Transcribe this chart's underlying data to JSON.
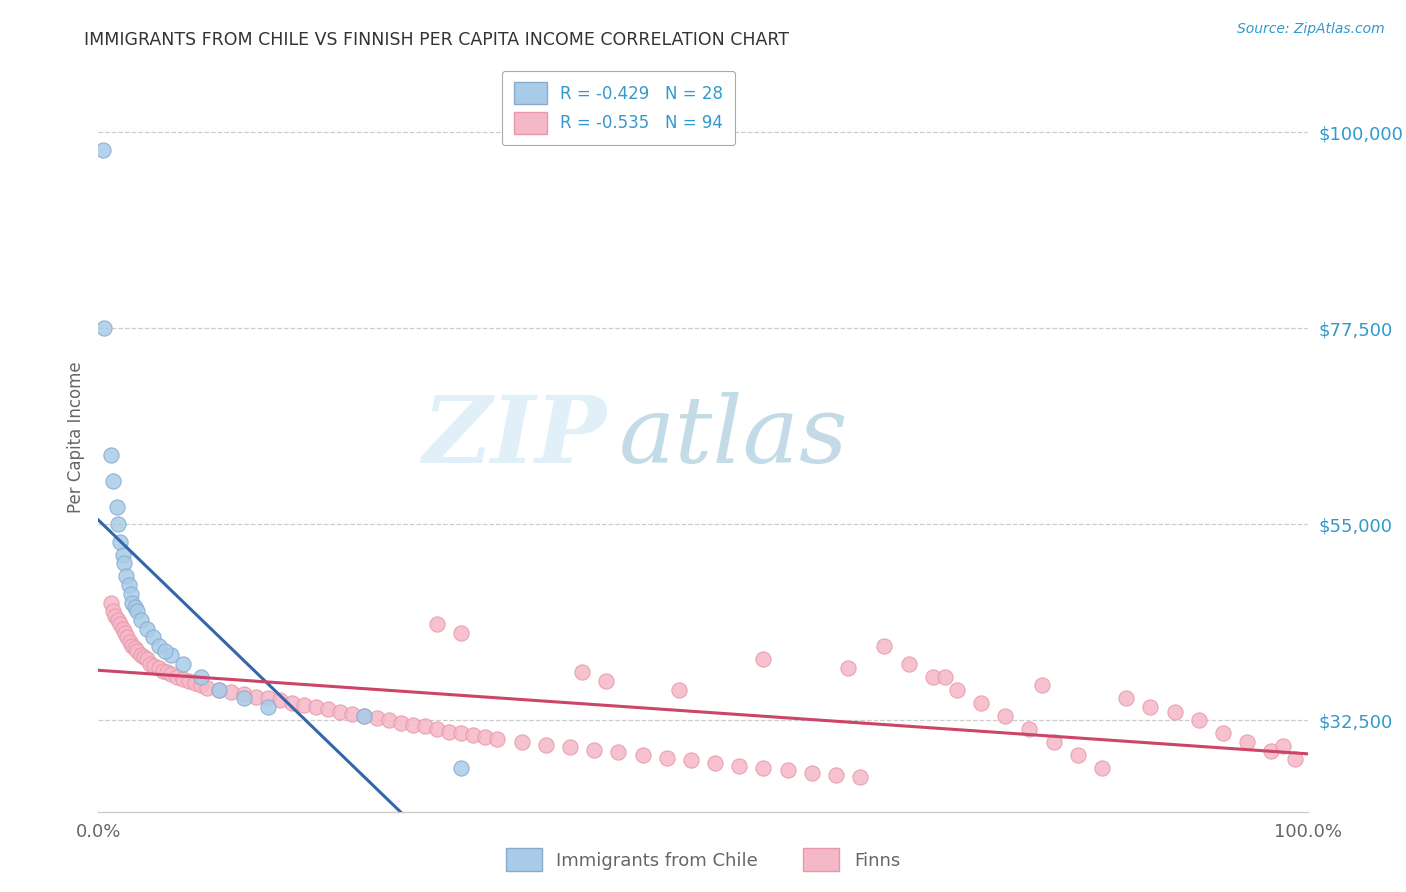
{
  "title": "IMMIGRANTS FROM CHILE VS FINNISH PER CAPITA INCOME CORRELATION CHART",
  "source_text": "Source: ZipAtlas.com",
  "ylabel": "Per Capita Income",
  "watermark_zip": "ZIP",
  "watermark_atlas": "atlas",
  "legend_blue_label": "Immigrants from Chile",
  "legend_pink_label": "Finns",
  "legend_blue_text": "R = -0.429   N = 28",
  "legend_pink_text": "R = -0.535   N = 94",
  "blue_color": "#A8CCE8",
  "pink_color": "#F5B8C8",
  "blue_edge_color": "#88AACE",
  "pink_edge_color": "#E898A8",
  "blue_line_color": "#3366AA",
  "pink_line_color": "#CC4466",
  "ytick_labels": [
    "$32,500",
    "$55,000",
    "$77,500",
    "$100,000"
  ],
  "ytick_values": [
    32500,
    55000,
    77500,
    100000
  ],
  "xmin": 0.0,
  "xmax": 100.0,
  "ymin": 22000,
  "ymax": 108000,
  "background_color": "#ffffff",
  "grid_color": "#cccccc",
  "title_color": "#333333",
  "axis_label_color": "#666666",
  "right_tick_color": "#3399CC",
  "source_color": "#3399CC",
  "blue_scatter_x": [
    0.4,
    0.5,
    1.0,
    1.2,
    1.5,
    1.6,
    1.8,
    2.0,
    2.1,
    2.3,
    2.5,
    2.7,
    2.8,
    3.0,
    3.2,
    3.5,
    4.0,
    4.5,
    5.0,
    6.0,
    7.0,
    8.5,
    10.0,
    12.0,
    14.0,
    5.5,
    22.0,
    30.0
  ],
  "blue_scatter_y": [
    98000,
    77500,
    63000,
    60000,
    57000,
    55000,
    53000,
    51500,
    50500,
    49000,
    48000,
    47000,
    46000,
    45500,
    45000,
    44000,
    43000,
    42000,
    41000,
    40000,
    39000,
    37500,
    36000,
    35000,
    34000,
    40500,
    33000,
    27000
  ],
  "pink_scatter_x": [
    1.0,
    1.2,
    1.4,
    1.6,
    1.8,
    2.0,
    2.2,
    2.4,
    2.6,
    2.8,
    3.0,
    3.2,
    3.5,
    3.8,
    4.0,
    4.3,
    4.6,
    5.0,
    5.3,
    5.7,
    6.0,
    6.5,
    7.0,
    7.5,
    8.0,
    8.5,
    9.0,
    10.0,
    11.0,
    12.0,
    13.0,
    14.0,
    15.0,
    16.0,
    17.0,
    18.0,
    19.0,
    20.0,
    21.0,
    22.0,
    23.0,
    24.0,
    25.0,
    26.0,
    27.0,
    28.0,
    29.0,
    30.0,
    31.0,
    32.0,
    33.0,
    35.0,
    37.0,
    39.0,
    41.0,
    43.0,
    45.0,
    47.0,
    49.0,
    51.0,
    53.0,
    55.0,
    57.0,
    59.0,
    61.0,
    63.0,
    65.0,
    67.0,
    69.0,
    71.0,
    73.0,
    75.0,
    77.0,
    79.0,
    81.0,
    83.0,
    85.0,
    87.0,
    89.0,
    91.0,
    93.0,
    95.0,
    97.0,
    99.0,
    30.0,
    28.0,
    40.0,
    42.0,
    48.0,
    55.0,
    62.0,
    70.0,
    78.0,
    98.0
  ],
  "pink_scatter_y": [
    46000,
    45000,
    44500,
    44000,
    43500,
    43000,
    42500,
    42000,
    41500,
    41000,
    40800,
    40500,
    40000,
    39800,
    39500,
    39000,
    38700,
    38500,
    38200,
    38000,
    37800,
    37500,
    37200,
    37000,
    36800,
    36500,
    36200,
    36000,
    35700,
    35500,
    35200,
    35000,
    34800,
    34500,
    34200,
    34000,
    33800,
    33500,
    33200,
    33000,
    32800,
    32500,
    32200,
    32000,
    31800,
    31500,
    31200,
    31000,
    30800,
    30600,
    30400,
    30000,
    29700,
    29400,
    29100,
    28800,
    28500,
    28200,
    27900,
    27600,
    27300,
    27000,
    26800,
    26500,
    26200,
    26000,
    41000,
    39000,
    37500,
    36000,
    34500,
    33000,
    31500,
    30000,
    28500,
    27000,
    35000,
    34000,
    33500,
    32500,
    31000,
    30000,
    29000,
    28000,
    42500,
    43500,
    38000,
    37000,
    36000,
    39500,
    38500,
    37500,
    36500,
    29500
  ]
}
